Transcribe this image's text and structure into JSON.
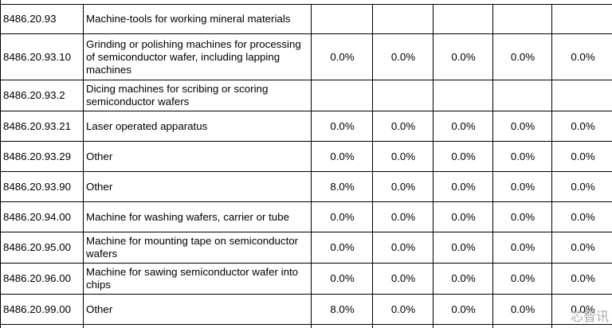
{
  "table": {
    "rows": [
      {
        "code": "8486.20.93",
        "description": "Machine-tools for working mineral materials",
        "rates": []
      },
      {
        "code": "8486.20.93.10",
        "description": "Grinding or polishing machines for processing of semiconductor wafer, including lapping machines",
        "rates": [
          "0.0%",
          "0.0%",
          "0.0%",
          "0.0%",
          "0.0%"
        ]
      },
      {
        "code": "8486.20.93.2",
        "description": "Dicing machines for scribing or scoring semiconductor wafers",
        "rates": []
      },
      {
        "code": "8486.20.93.21",
        "description": "Laser operated apparatus",
        "rates": [
          "0.0%",
          "0.0%",
          "0.0%",
          "0.0%",
          "0.0%"
        ]
      },
      {
        "code": "8486.20.93.29",
        "description": "Other",
        "rates": [
          "0.0%",
          "0.0%",
          "0.0%",
          "0.0%",
          "0.0%"
        ]
      },
      {
        "code": "8486.20.93.90",
        "description": "Other",
        "rates": [
          "8.0%",
          "0.0%",
          "0.0%",
          "0.0%",
          "0.0%"
        ]
      },
      {
        "code": "8486.20.94.00",
        "description": "Machine for washing wafers, carrier or tube",
        "rates": [
          "0.0%",
          "0.0%",
          "0.0%",
          "0.0%",
          "0.0%"
        ]
      },
      {
        "code": "8486.20.95.00",
        "description": "Machine for mounting tape on semiconductor wafers",
        "rates": [
          "0.0%",
          "0.0%",
          "0.0%",
          "0.0%",
          "0.0%"
        ]
      },
      {
        "code": "8486.20.96.00",
        "description": "Machine for sawing semiconductor wafer into chips",
        "rates": [
          "0.0%",
          "0.0%",
          "0.0%",
          "0.0%",
          "0.0%"
        ]
      },
      {
        "code": "8486.20.99.00",
        "description": "Other",
        "rates": [
          "8.0%",
          "0.0%",
          "0.0%",
          "0.0%",
          "0.0%"
        ]
      }
    ],
    "watermark": "芯智讯"
  }
}
